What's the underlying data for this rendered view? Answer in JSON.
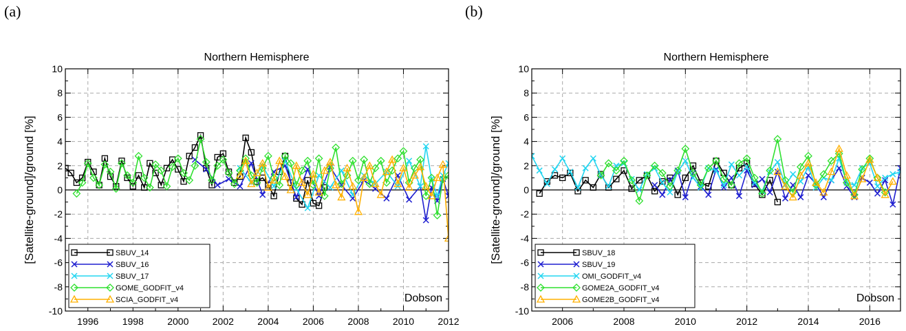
{
  "panels": {
    "a": {
      "label": "(a)"
    },
    "b": {
      "label": "(b)"
    }
  },
  "chart_data": [
    {
      "type": "line",
      "title": "Northern Hemisphere",
      "xlabel": "",
      "ylabel": "[Satellite-ground]/ground [%]",
      "annotation": "Dobson",
      "xlim": [
        1995,
        2012
      ],
      "ylim": [
        -10,
        10
      ],
      "xticks": [
        1996,
        1998,
        2000,
        2002,
        2004,
        2006,
        2008,
        2010,
        2012
      ],
      "yticks": [
        10,
        8,
        6,
        4,
        2,
        0,
        -2,
        -4,
        -6,
        -8,
        -10
      ],
      "grid": true,
      "legend_position": "bottom-left",
      "series": [
        {
          "name": "SBUV_14",
          "color": "#000000",
          "marker": "square",
          "x": [
            1995.0,
            1995.25,
            1995.5,
            1995.75,
            1996.0,
            1996.25,
            1996.5,
            1996.75,
            1997.0,
            1997.25,
            1997.5,
            1997.75,
            1998.0,
            1998.25,
            1998.5,
            1998.75,
            1999.0,
            1999.25,
            1999.5,
            1999.75,
            2000.0,
            2000.25,
            2000.5,
            2000.75,
            2001.0,
            2001.25,
            2001.5,
            2001.75,
            2002.0,
            2002.25,
            2002.5,
            2002.75,
            2003.0,
            2003.25,
            2003.5,
            2003.75,
            2004.0,
            2004.25,
            2004.5,
            2004.75,
            2005.0,
            2005.25,
            2005.5,
            2005.75,
            2006.0,
            2006.25,
            2006.5
          ],
          "y": [
            1.8,
            1.4,
            0.6,
            1.0,
            2.3,
            1.5,
            0.4,
            2.6,
            1.1,
            0.3,
            2.4,
            1.0,
            0.3,
            1.2,
            0.2,
            2.2,
            1.4,
            0.4,
            1.8,
            2.5,
            1.7,
            0.7,
            2.8,
            3.5,
            4.5,
            1.8,
            0.4,
            2.7,
            3.0,
            1.5,
            0.6,
            1.1,
            4.3,
            3.1,
            0.7,
            1.0,
            0.4,
            -0.5,
            1.5,
            2.8,
            0.6,
            -0.7,
            -1.2,
            0.8,
            -1.1,
            -1.3,
            0.2
          ]
        },
        {
          "name": "SBUV_16",
          "color": "#1f1fd0",
          "marker": "x",
          "x": [
            2000.75,
            2001.25,
            2001.75,
            2002.25,
            2002.75,
            2003.25,
            2003.75,
            2004.25,
            2004.75,
            2005.25,
            2005.75,
            2006.25,
            2006.75,
            2007.25,
            2007.75,
            2008.25,
            2008.75,
            2009.25,
            2009.75,
            2010.25,
            2010.75,
            2011.0,
            2011.25,
            2011.5,
            2011.75,
            2012.0
          ],
          "y": [
            2.5,
            1.7,
            0.4,
            0.9,
            0.3,
            2.2,
            -0.4,
            1.5,
            2.0,
            -0.6,
            1.7,
            -0.5,
            1.9,
            0.4,
            -0.7,
            0.8,
            0.1,
            -0.7,
            1.2,
            -0.8,
            0.3,
            -2.5,
            0.2,
            -0.9,
            0.9,
            -0.5
          ]
        },
        {
          "name": "SBUV_17",
          "color": "#22d5f0",
          "marker": "x",
          "x": [
            2002.75,
            2003.25,
            2003.75,
            2004.25,
            2004.75,
            2005.25,
            2005.75,
            2006.25,
            2006.75,
            2007.25,
            2007.75,
            2008.25,
            2008.75,
            2009.25,
            2009.75,
            2010.25,
            2010.75,
            2011.0,
            2011.25,
            2011.5,
            2011.75,
            2012.0
          ],
          "y": [
            1.8,
            0.6,
            2.0,
            0.3,
            2.4,
            0.1,
            -1.5,
            1.2,
            0.2,
            1.6,
            -0.4,
            1.2,
            0.5,
            1.5,
            0.3,
            2.4,
            0.3,
            3.6,
            0.9,
            -0.5,
            1.2,
            2.2
          ]
        },
        {
          "name": "GOME_GODFIT_v4",
          "color": "#2fe02f",
          "marker": "diamond",
          "x": [
            1995.5,
            1995.75,
            1996.0,
            1996.25,
            1996.5,
            1996.75,
            1997.0,
            1997.25,
            1997.5,
            1997.75,
            1998.0,
            1998.25,
            1998.5,
            1998.75,
            1999.0,
            1999.25,
            1999.5,
            1999.75,
            2000.0,
            2000.25,
            2000.5,
            2000.75,
            2001.0,
            2001.25,
            2001.5,
            2001.75,
            2002.0,
            2002.25,
            2002.5,
            2002.75,
            2003.0,
            2003.25,
            2003.5,
            2003.75,
            2004.0,
            2004.25,
            2004.5,
            2004.75,
            2005.0,
            2005.25,
            2005.5,
            2005.75,
            2006.0,
            2006.25,
            2006.5,
            2006.75,
            2007.0,
            2007.25,
            2007.5,
            2007.75,
            2008.0,
            2008.25,
            2008.5,
            2008.75,
            2009.0,
            2009.25,
            2009.5,
            2009.75,
            2010.0,
            2010.25,
            2010.5,
            2010.75,
            2011.0,
            2011.25,
            2011.5,
            2011.75,
            2012.0
          ],
          "y": [
            -0.3,
            0.6,
            2.2,
            1.0,
            0.4,
            2.1,
            1.5,
            0.1,
            2.2,
            1.2,
            0.6,
            2.8,
            1.0,
            0.2,
            2.1,
            1.6,
            0.3,
            1.9,
            2.6,
            1.4,
            0.8,
            2.0,
            4.2,
            2.3,
            0.8,
            2.0,
            2.5,
            1.4,
            0.5,
            1.6,
            2.6,
            1.2,
            0.6,
            1.8,
            2.8,
            1.0,
            0.4,
            2.8,
            2.2,
            0.4,
            1.6,
            2.4,
            0.4,
            2.6,
            -0.5,
            1.8,
            3.5,
            0.5,
            1.2,
            2.4,
            0.8,
            2.5,
            0.5,
            1.8,
            2.4,
            0.6,
            1.6,
            2.6,
            3.2,
            0.6,
            1.8,
            2.5,
            -0.5,
            1.0,
            -2.1,
            0.9,
            1.2
          ]
        },
        {
          "name": "SCIA_GODFIT_v4",
          "color": "#ffb000",
          "marker": "triangle",
          "x": [
            2002.75,
            2003.0,
            2003.25,
            2003.5,
            2003.75,
            2004.0,
            2004.25,
            2004.5,
            2004.75,
            2005.0,
            2005.25,
            2005.5,
            2005.75,
            2006.0,
            2006.25,
            2006.5,
            2006.75,
            2007.0,
            2007.25,
            2007.5,
            2007.75,
            2008.0,
            2008.25,
            2008.5,
            2008.75,
            2009.0,
            2009.25,
            2009.5,
            2009.75,
            2010.0,
            2010.25,
            2010.5,
            2010.75,
            2011.0,
            2011.25,
            2011.5,
            2011.75,
            2012.0
          ],
          "y": [
            1.2,
            2.4,
            0.5,
            1.4,
            2.2,
            0.2,
            0.8,
            2.4,
            1.1,
            0.0,
            2.0,
            0.6,
            -0.4,
            1.3,
            -0.2,
            1.6,
            2.3,
            0.4,
            -0.6,
            1.8,
            0.3,
            -1.8,
            1.0,
            2.0,
            0.5,
            -0.4,
            1.5,
            2.5,
            0.5,
            1.8,
            0.2,
            1.2,
            1.9,
            0.3,
            -0.5,
            1.0,
            2.1,
            -4.0
          ]
        }
      ]
    },
    {
      "type": "line",
      "title": "Northern Hemisphere",
      "xlabel": "",
      "ylabel": "[Satellite-ground]/ground [%]",
      "annotation": "Dobson",
      "xlim": [
        2005,
        2017
      ],
      "ylim": [
        -10,
        10
      ],
      "xticks": [
        2006,
        2008,
        2010,
        2012,
        2014,
        2016
      ],
      "yticks": [
        10,
        8,
        6,
        4,
        2,
        0,
        -2,
        -4,
        -6,
        -8,
        -10
      ],
      "grid": true,
      "legend_position": "bottom-left",
      "series": [
        {
          "name": "SBUV_18",
          "color": "#000000",
          "marker": "square",
          "x": [
            2005.25,
            2005.5,
            2005.75,
            2006.0,
            2006.25,
            2006.5,
            2006.75,
            2007.0,
            2007.25,
            2007.5,
            2007.75,
            2008.0,
            2008.25,
            2008.5,
            2008.75,
            2009.0,
            2009.25,
            2009.5,
            2009.75,
            2010.0,
            2010.25,
            2010.5,
            2010.75,
            2011.0,
            2011.25,
            2011.5,
            2011.75,
            2012.0,
            2012.25,
            2012.5,
            2012.75,
            2013.0
          ],
          "y": [
            -0.3,
            0.7,
            1.2,
            1.0,
            1.4,
            -0.1,
            0.8,
            0.2,
            1.3,
            0.2,
            0.9,
            1.6,
            0.1,
            0.8,
            1.2,
            -0.1,
            0.7,
            1.0,
            -0.4,
            1.0,
            2.0,
            0.6,
            0.3,
            2.4,
            1.4,
            0.4,
            1.8,
            2.2,
            0.5,
            -0.4,
            0.8,
            -1.0
          ]
        },
        {
          "name": "SBUV_19",
          "color": "#1f1fd0",
          "marker": "x",
          "x": [
            2009.0,
            2009.25,
            2009.5,
            2009.75,
            2010.0,
            2010.25,
            2010.5,
            2010.75,
            2011.0,
            2011.25,
            2011.5,
            2011.75,
            2012.0,
            2012.25,
            2012.5,
            2012.75,
            2013.0,
            2013.25,
            2013.5,
            2013.75,
            2014.0,
            2014.25,
            2014.5,
            2014.75,
            2015.0,
            2015.25,
            2015.5,
            2015.75,
            2016.0,
            2016.25,
            2016.5,
            2016.75,
            2017.0
          ],
          "y": [
            0.4,
            -0.4,
            0.8,
            1.6,
            -0.6,
            1.4,
            0.3,
            -0.4,
            1.7,
            0.2,
            1.0,
            -0.5,
            1.6,
            0.4,
            0.9,
            -0.2,
            1.5,
            -0.7,
            0.4,
            -0.6,
            1.2,
            0.5,
            -0.6,
            0.8,
            1.8,
            0.3,
            -0.6,
            1.0,
            0.6,
            -0.3,
            0.8,
            -1.2,
            1.8
          ]
        },
        {
          "name": "OMI_GODFIT_v4",
          "color": "#22d5f0",
          "marker": "x",
          "x": [
            2005.0,
            2005.25,
            2005.5,
            2005.75,
            2006.0,
            2006.25,
            2006.5,
            2006.75,
            2007.0,
            2007.25,
            2007.5,
            2007.75,
            2008.0,
            2008.25,
            2008.5,
            2008.75,
            2009.0,
            2009.25,
            2009.5,
            2009.75,
            2010.0,
            2010.25,
            2010.5,
            2010.75,
            2011.0,
            2011.25,
            2011.5,
            2011.75,
            2012.0,
            2012.25,
            2012.5,
            2012.75,
            2013.0,
            2013.25,
            2013.5,
            2013.75,
            2014.0,
            2014.25,
            2014.5,
            2014.75,
            2015.0,
            2015.25,
            2015.5,
            2015.75,
            2016.0,
            2016.25,
            2016.5,
            2016.75,
            2017.0
          ],
          "y": [
            2.8,
            1.6,
            0.5,
            1.7,
            2.6,
            1.5,
            0.2,
            1.8,
            2.6,
            1.2,
            0.3,
            2.0,
            2.2,
            0.9,
            0.0,
            1.3,
            1.8,
            0.6,
            -0.2,
            1.5,
            2.4,
            1.0,
            0.2,
            1.8,
            1.6,
            0.4,
            2.1,
            1.2,
            1.9,
            0.6,
            -0.1,
            1.5,
            2.3,
            0.4,
            1.3,
            0.7,
            1.9,
            0.2,
            1.0,
            0.8,
            2.6,
            0.6,
            0.4,
            1.8,
            2.2,
            0.3,
            1.0,
            1.3,
            1.5
          ]
        },
        {
          "name": "GOME2A_GODFIT_v4",
          "color": "#2fe02f",
          "marker": "diamond",
          "x": [
            2007.25,
            2007.5,
            2007.75,
            2008.0,
            2008.25,
            2008.5,
            2008.75,
            2009.0,
            2009.25,
            2009.5,
            2009.75,
            2010.0,
            2010.25,
            2010.5,
            2010.75,
            2011.0,
            2011.25,
            2011.5,
            2011.75,
            2012.0,
            2012.25,
            2012.5,
            2012.75,
            2013.0,
            2013.25,
            2013.5,
            2013.75,
            2014.0,
            2014.25,
            2014.5,
            2014.75,
            2015.0,
            2015.25,
            2015.5,
            2015.75,
            2016.0,
            2016.25,
            2016.5
          ],
          "y": [
            1.2,
            2.2,
            1.6,
            2.4,
            0.8,
            -0.9,
            1.2,
            2.0,
            1.4,
            0.3,
            1.6,
            3.4,
            1.4,
            0.4,
            1.8,
            2.4,
            0.9,
            0.4,
            2.2,
            2.6,
            1.0,
            -0.3,
            1.6,
            4.2,
            0.8,
            -0.2,
            1.9,
            2.8,
            0.4,
            1.3,
            2.4,
            3.0,
            0.6,
            -0.4,
            1.7,
            2.6,
            1.0,
            -0.2
          ]
        },
        {
          "name": "GOME2B_GODFIT_v4",
          "color": "#ffb000",
          "marker": "triangle",
          "x": [
            2013.0,
            2013.25,
            2013.5,
            2013.75,
            2014.0,
            2014.25,
            2014.5,
            2014.75,
            2015.0,
            2015.25,
            2015.5,
            2015.75,
            2016.0,
            2016.25,
            2016.5,
            2016.75
          ],
          "y": [
            1.5,
            0.3,
            -0.6,
            1.2,
            2.2,
            0.6,
            -0.2,
            1.5,
            3.4,
            1.2,
            -0.5,
            0.9,
            2.5,
            1.0,
            -0.4,
            0.7
          ]
        }
      ]
    }
  ]
}
